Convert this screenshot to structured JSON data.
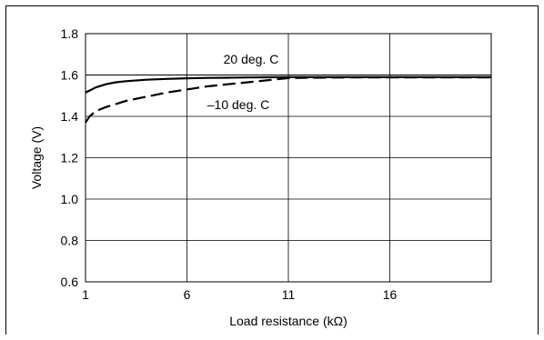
{
  "chart_data": {
    "type": "line",
    "title": "",
    "xlabel": "Load resistance (kΩ)",
    "ylabel": "Voltage (V)",
    "xlim": [
      1,
      21
    ],
    "ylim": [
      0.6,
      1.8
    ],
    "xticks": [
      1,
      6,
      11,
      16
    ],
    "xtick_labels": [
      "1",
      "6",
      "11",
      "16"
    ],
    "yticks": [
      0.6,
      0.8,
      1.0,
      1.2,
      1.4,
      1.6,
      1.8
    ],
    "ytick_labels": [
      "0.6",
      "0.8",
      "1.0",
      "1.2",
      "1.4",
      "1.6",
      "1.8"
    ],
    "grid": true,
    "reference_line": {
      "y": 1.6
    },
    "series": [
      {
        "name": "20 deg. C",
        "style": "solid",
        "x": [
          1,
          1.2,
          1.5,
          2,
          2.5,
          3,
          4,
          5,
          6,
          7,
          8,
          9,
          10,
          11,
          12,
          14,
          16,
          18,
          21
        ],
        "y": [
          1.515,
          1.525,
          1.54,
          1.555,
          1.565,
          1.57,
          1.577,
          1.581,
          1.584,
          1.586,
          1.587,
          1.588,
          1.589,
          1.59,
          1.59,
          1.59,
          1.59,
          1.59,
          1.59
        ]
      },
      {
        "name": "–10 deg. C",
        "style": "dashed",
        "x": [
          1,
          1.2,
          1.5,
          2,
          2.5,
          3,
          4,
          5,
          6,
          7,
          8,
          9,
          10,
          11,
          12,
          14,
          16,
          18,
          21
        ],
        "y": [
          1.37,
          1.4,
          1.425,
          1.445,
          1.46,
          1.475,
          1.495,
          1.515,
          1.53,
          1.545,
          1.555,
          1.565,
          1.575,
          1.585,
          1.587,
          1.588,
          1.588,
          1.588,
          1.588
        ]
      }
    ]
  }
}
